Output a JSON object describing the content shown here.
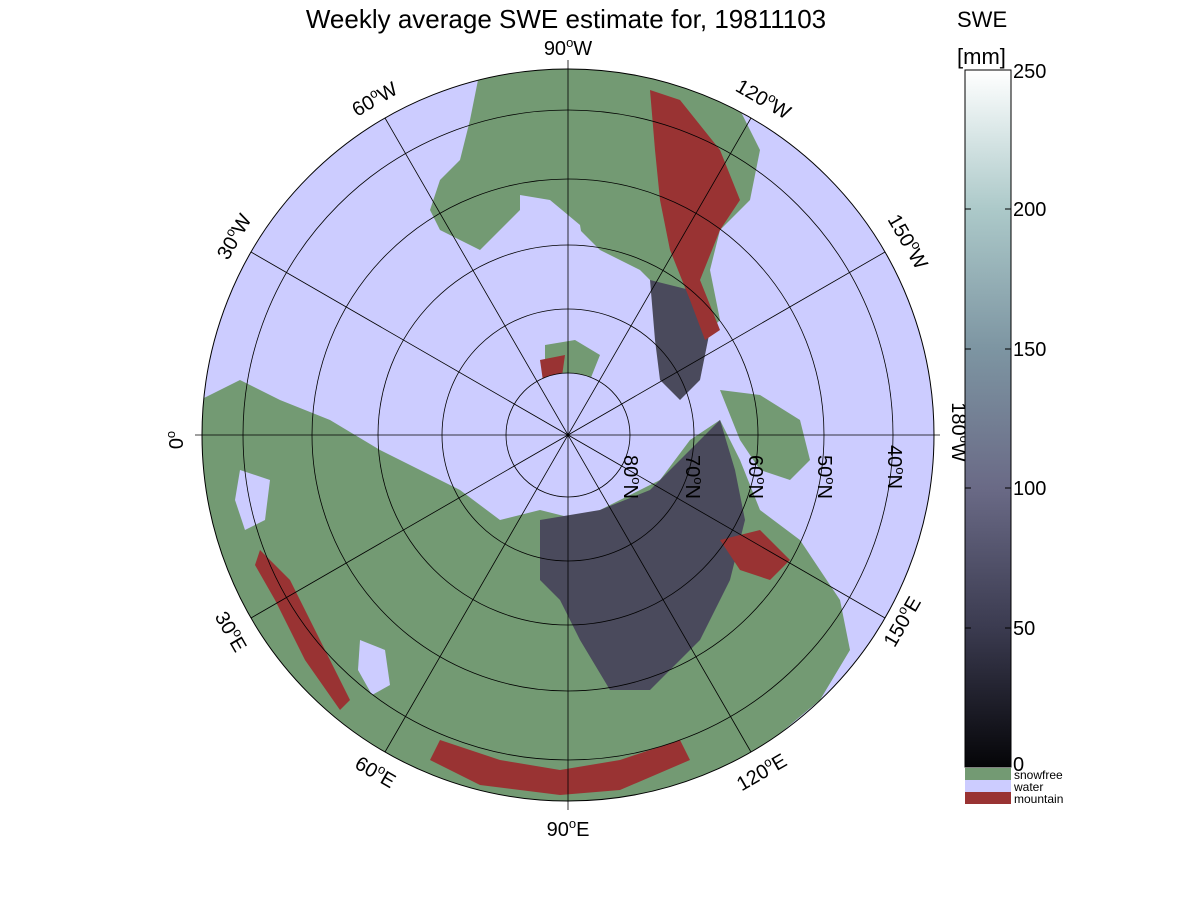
{
  "title": "Weekly average SWE estimate for, 19811103",
  "colorbar": {
    "label_line1": "SWE",
    "label_line2": "[mm]",
    "ticks": [
      "0",
      "50",
      "100",
      "150",
      "200",
      "250"
    ],
    "range": [
      0,
      250
    ],
    "categories": [
      {
        "label": "snowfree",
        "color": "#739a73"
      },
      {
        "label": "water",
        "color": "#ccccff"
      },
      {
        "label": "mountain",
        "color": "#993333"
      }
    ]
  },
  "map": {
    "projection": "north polar stereographic",
    "longitude_labels": {
      "lon_90W": "90",
      "lon_60W": "60",
      "lon_30W": "30",
      "lon_120W": "120",
      "lon_150W": "150",
      "lon_180W": "180",
      "lon_0": "0",
      "lon_30E": "30",
      "lon_60E": "60",
      "lon_90E": "90",
      "lon_120E": "120",
      "lon_150E": "150"
    },
    "latitude_labels": [
      "80",
      "70",
      "60",
      "50",
      "40"
    ],
    "colors": {
      "water": "#ccccff",
      "snowfree": "#739a73",
      "mountain": "#993333",
      "snow": "#4a4a5c"
    }
  }
}
